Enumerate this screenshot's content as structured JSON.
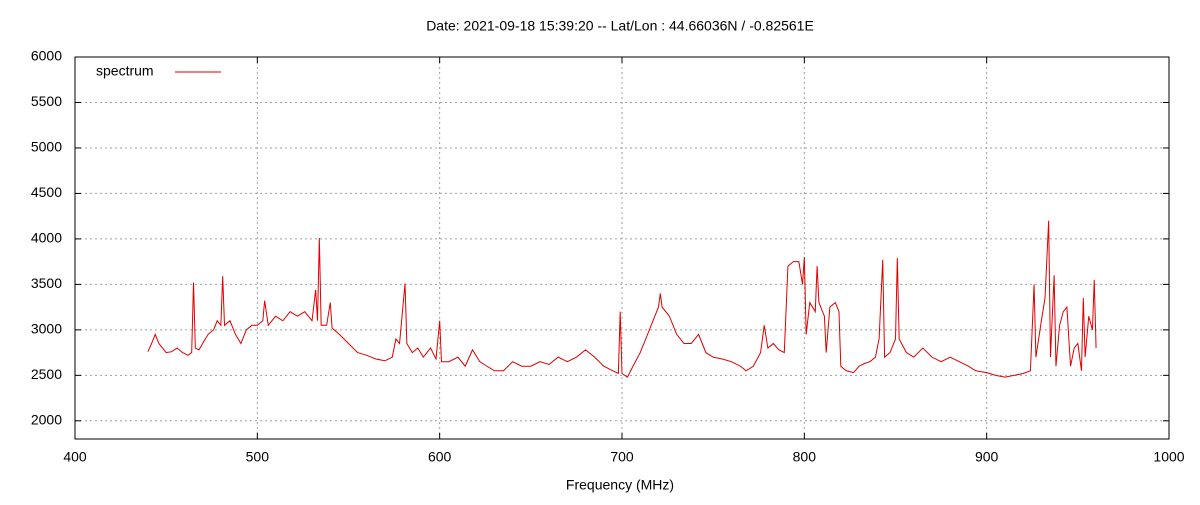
{
  "chart_data": {
    "type": "line",
    "title": "Date: 2021-09-18 15:39:20  --  Lat/Lon : 44.66036N / -0.82561E",
    "x_label": "Frequency (MHz)",
    "xlim": [
      400,
      1000
    ],
    "xticks": [
      400,
      500,
      600,
      700,
      800,
      900,
      1000
    ],
    "ylim": [
      1800,
      6000
    ],
    "yticks": [
      2000,
      2500,
      3000,
      3500,
      4000,
      4500,
      5000,
      5500,
      6000
    ],
    "grid": true,
    "legend": "top-left",
    "x": [
      440,
      442,
      444,
      446,
      448,
      450,
      453,
      456,
      459,
      462,
      464,
      465,
      466,
      468,
      470,
      473,
      476,
      478,
      480,
      481,
      482,
      485,
      488,
      491,
      494,
      497,
      500,
      503,
      504,
      506,
      510,
      514,
      518,
      522,
      526,
      530,
      532,
      533,
      534,
      535,
      538,
      540,
      541,
      545,
      550,
      555,
      560,
      565,
      570,
      574,
      576,
      578,
      581,
      582,
      585,
      588,
      591,
      595,
      598,
      600,
      601,
      605,
      610,
      614,
      618,
      622,
      626,
      630,
      635,
      640,
      645,
      650,
      655,
      660,
      665,
      670,
      675,
      680,
      685,
      690,
      695,
      698,
      699,
      700,
      703,
      706,
      710,
      714,
      718,
      720,
      721,
      722,
      726,
      730,
      734,
      738,
      742,
      746,
      750,
      755,
      760,
      765,
      768,
      772,
      776,
      778,
      780,
      783,
      786,
      789,
      791,
      794,
      797,
      799,
      800,
      801,
      803,
      806,
      807,
      808,
      811,
      812,
      814,
      817,
      819,
      820,
      823,
      827,
      830,
      833,
      836,
      839,
      841,
      843,
      844,
      847,
      850,
      851,
      852,
      856,
      860,
      865,
      870,
      875,
      880,
      885,
      890,
      894,
      900,
      905,
      910,
      915,
      920,
      924,
      926,
      927,
      930,
      932,
      934,
      935,
      937,
      938,
      940,
      942,
      944,
      946,
      948,
      950,
      952,
      953,
      954,
      956,
      958,
      959,
      960
    ],
    "series": [
      {
        "name": "spectrum",
        "color": "#e00000",
        "values": [
          2760,
          2850,
          2950,
          2850,
          2800,
          2750,
          2760,
          2800,
          2750,
          2720,
          2750,
          3520,
          2800,
          2780,
          2850,
          2950,
          3000,
          3100,
          3050,
          3590,
          3050,
          3100,
          2950,
          2850,
          3000,
          3050,
          3050,
          3100,
          3320,
          3050,
          3150,
          3100,
          3200,
          3150,
          3200,
          3100,
          3440,
          3100,
          4010,
          3050,
          3050,
          3300,
          3020,
          2950,
          2850,
          2750,
          2720,
          2680,
          2660,
          2700,
          2900,
          2850,
          3510,
          2850,
          2750,
          2800,
          2700,
          2800,
          2680,
          3100,
          2650,
          2650,
          2700,
          2600,
          2780,
          2650,
          2600,
          2550,
          2550,
          2650,
          2600,
          2600,
          2650,
          2620,
          2700,
          2650,
          2700,
          2780,
          2700,
          2600,
          2550,
          2520,
          3200,
          2520,
          2480,
          2600,
          2750,
          2950,
          3150,
          3250,
          3400,
          3250,
          3150,
          2950,
          2850,
          2850,
          2950,
          2750,
          2700,
          2680,
          2650,
          2600,
          2550,
          2600,
          2750,
          3050,
          2800,
          2850,
          2780,
          2750,
          3700,
          3750,
          3750,
          3500,
          3800,
          2950,
          3300,
          3200,
          3700,
          3300,
          3150,
          2750,
          3250,
          3300,
          3200,
          2600,
          2550,
          2530,
          2600,
          2630,
          2650,
          2700,
          2900,
          3770,
          2700,
          2750,
          2900,
          3790,
          2900,
          2750,
          2700,
          2800,
          2700,
          2650,
          2700,
          2650,
          2600,
          2550,
          2530,
          2500,
          2480,
          2500,
          2520,
          2550,
          3500,
          2700,
          3100,
          3350,
          4200,
          2700,
          3600,
          2600,
          3050,
          3200,
          3250,
          2600,
          2800,
          2850,
          2550,
          3350,
          2700,
          3150,
          3000,
          3550,
          2800
        ]
      }
    ]
  }
}
